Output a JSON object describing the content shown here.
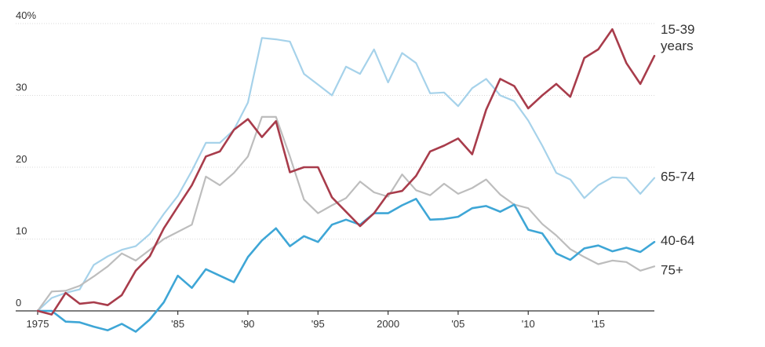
{
  "chart_data": {
    "type": "line",
    "title": "",
    "xlabel": "",
    "ylabel": "",
    "xlim": [
      1975,
      2019
    ],
    "ylim": [
      -3,
      40
    ],
    "x_ticks": [
      1975,
      1985,
      1990,
      1995,
      2000,
      2005,
      2010,
      2015
    ],
    "x_tick_labels": [
      "1975",
      "'85",
      "'90",
      "'95",
      "2000",
      "'05",
      "'10",
      "'15"
    ],
    "y_ticks": [
      0,
      10,
      20,
      30,
      40
    ],
    "y_tick_labels": [
      "0",
      "10",
      "20",
      "30",
      "40%"
    ],
    "grid": true,
    "legend": "inline-labels-right",
    "x": [
      1975,
      1976,
      1977,
      1978,
      1979,
      1980,
      1981,
      1982,
      1983,
      1984,
      1985,
      1986,
      1987,
      1988,
      1989,
      1990,
      1991,
      1992,
      1993,
      1994,
      1995,
      1996,
      1997,
      1998,
      1999,
      2000,
      2001,
      2002,
      2003,
      2004,
      2005,
      2006,
      2007,
      2008,
      2009,
      2010,
      2011,
      2012,
      2013,
      2014,
      2015,
      2016,
      2017,
      2018,
      2019
    ],
    "series": [
      {
        "name": "15-39 years",
        "label_lines": [
          "15-39",
          "years"
        ],
        "color": "#a83c4b",
        "values": [
          0,
          -0.5,
          2.5,
          1,
          1.2,
          0.8,
          2.2,
          5.6,
          7.6,
          11.5,
          14.5,
          17.5,
          21.5,
          22.2,
          25.2,
          26.7,
          24.2,
          26.4,
          19.3,
          20,
          20,
          15.8,
          13.8,
          11.8,
          13.6,
          16.3,
          16.7,
          18.8,
          22.2,
          23,
          24,
          21.8,
          28,
          32.3,
          31.3,
          28.2,
          30,
          31.6,
          29.8,
          35.2,
          36.4,
          39.2,
          34.5,
          31.6,
          35.5
        ]
      },
      {
        "name": "65-74",
        "label_lines": [
          "65-74"
        ],
        "color": "#a6d2ea",
        "values": [
          0,
          1.8,
          2.5,
          3,
          6.4,
          7.6,
          8.5,
          9,
          10.7,
          13.5,
          16,
          19.5,
          23.4,
          23.4,
          25.2,
          29,
          38,
          37.8,
          37.5,
          33,
          31.5,
          30,
          34,
          33,
          36.4,
          31.8,
          35.9,
          34.5,
          30.3,
          30.4,
          28.5,
          31,
          32.3,
          30,
          29.2,
          26.5,
          23,
          19.2,
          18.3,
          15.7,
          17.5,
          18.6,
          18.5,
          16.3,
          18.5
        ]
      },
      {
        "name": "40-64",
        "label_lines": [
          "40-64"
        ],
        "color": "#3ea6d6",
        "values": [
          0,
          0,
          -1.5,
          -1.6,
          -2.2,
          -2.7,
          -1.8,
          -2.9,
          -1.2,
          1.2,
          4.9,
          3.2,
          5.8,
          4.9,
          4,
          7.5,
          9.8,
          11.5,
          9,
          10.4,
          9.6,
          12,
          12.7,
          12,
          13.6,
          13.6,
          14.7,
          15.6,
          12.7,
          12.8,
          13.1,
          14.3,
          14.6,
          13.8,
          14.8,
          11.3,
          10.8,
          8,
          7.1,
          8.7,
          9.1,
          8.3,
          8.8,
          8.2,
          9.6
        ]
      },
      {
        "name": "75+",
        "label_lines": [
          "75+"
        ],
        "color": "#bdbdbd",
        "values": [
          0,
          2.7,
          2.8,
          3.5,
          4.8,
          6.2,
          8,
          7,
          8.5,
          10,
          11,
          12,
          18.7,
          17.5,
          19.2,
          21.5,
          27,
          27,
          21.5,
          15.5,
          13.6,
          14.7,
          15.7,
          18,
          16.5,
          15.9,
          19,
          16.8,
          16.1,
          17.7,
          16.3,
          17.1,
          18.3,
          16.2,
          14.8,
          14.3,
          12.1,
          10.5,
          8.6,
          7.5,
          6.5,
          7,
          6.8,
          5.6,
          6.2
        ]
      }
    ]
  }
}
